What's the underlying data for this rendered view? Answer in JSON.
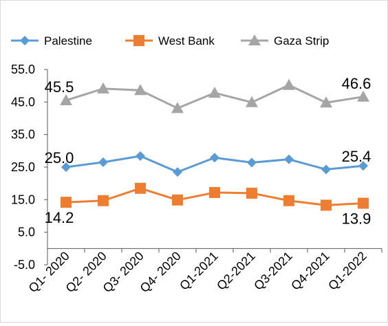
{
  "chart_data": {
    "type": "line",
    "categories": [
      "Q1- 2020",
      "Q2- 2020",
      "Q3- 2020",
      "Q4- 2020",
      "Q1-2021",
      "Q2-2021",
      "Q3-2021",
      "Q4-2021",
      "Q1-2022"
    ],
    "ylim": [
      -5.0,
      55.0
    ],
    "yticks": [
      "55.0",
      "45.0",
      "35.0",
      "25.0",
      "15.0",
      "5.0",
      "-5.0"
    ],
    "ytick_values": [
      55,
      45,
      35,
      25,
      15,
      5,
      -5
    ],
    "grid": false,
    "legend_position": "top",
    "series": [
      {
        "name": "Palestine",
        "color": "#5b9bd5",
        "marker": "diamond",
        "values": [
          25.0,
          26.5,
          28.4,
          23.5,
          27.9,
          26.4,
          27.4,
          24.3,
          25.4
        ]
      },
      {
        "name": "West Bank",
        "color": "#ed7d31",
        "marker": "square",
        "values": [
          14.2,
          14.7,
          18.5,
          14.9,
          17.2,
          17.0,
          14.7,
          13.3,
          13.9
        ]
      },
      {
        "name": "Gaza Strip",
        "color": "#a5a5a5",
        "marker": "triangle",
        "values": [
          45.5,
          49.1,
          48.6,
          43.1,
          47.8,
          44.9,
          50.2,
          44.8,
          46.6
        ]
      }
    ],
    "data_labels": [
      {
        "series": "Gaza Strip",
        "index": 0,
        "text": "45.5"
      },
      {
        "series": "Gaza Strip",
        "index": 8,
        "text": "46.6"
      },
      {
        "series": "Palestine",
        "index": 0,
        "text": "25.0"
      },
      {
        "series": "Palestine",
        "index": 8,
        "text": "25.4"
      },
      {
        "series": "West Bank",
        "index": 0,
        "text": "14.2"
      },
      {
        "series": "West Bank",
        "index": 8,
        "text": "13.9"
      }
    ]
  }
}
